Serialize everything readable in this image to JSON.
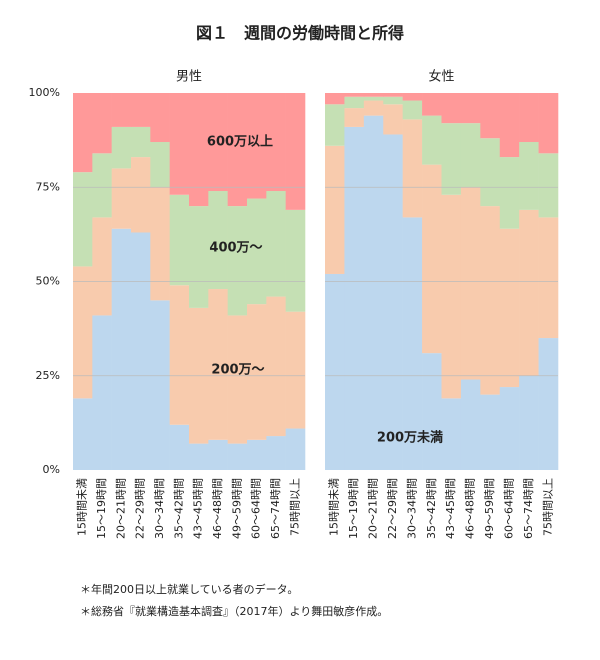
{
  "title": "図１　週間の労働時間と所得",
  "footnotes": [
    "＊年間200日以上就業している者のデータ。",
    "＊総務省『就業構造基本調査』（2017年）より舞田敏彦作成。"
  ],
  "chart_data": [
    {
      "type": "bar",
      "stacked": true,
      "title": "男性",
      "categories": [
        "15時間未満",
        "15～19時間",
        "20～21時間",
        "22～29時間",
        "30～34時間",
        "35～42時間",
        "43～45時間",
        "46～48時間",
        "49～59時間",
        "60～64時間",
        "65～74時間",
        "75時間以上"
      ],
      "series": [
        {
          "name": "200万未満",
          "color": "#bdd7ee",
          "values": [
            19,
            41,
            64,
            63,
            45,
            12,
            7,
            8,
            7,
            8,
            9,
            11
          ]
        },
        {
          "name": "200万～",
          "color": "#f8cbad",
          "values": [
            35,
            26,
            16,
            20,
            30,
            37,
            36,
            40,
            34,
            36,
            37,
            31
          ]
        },
        {
          "name": "400万～",
          "color": "#c5e0b4",
          "values": [
            25,
            17,
            11,
            8,
            12,
            24,
            27,
            26,
            29,
            28,
            28,
            27
          ]
        },
        {
          "name": "600万以上",
          "color": "#ff9999",
          "values": [
            21,
            16,
            9,
            9,
            13,
            27,
            30,
            26,
            30,
            28,
            26,
            31
          ]
        }
      ],
      "ylim": [
        0,
        100
      ],
      "yticks": [
        {
          "value": 0,
          "label": "0%"
        },
        {
          "value": 25,
          "label": "25%"
        },
        {
          "value": 50,
          "label": "50%"
        },
        {
          "value": 75,
          "label": "75%"
        },
        {
          "value": 100,
          "label": "100%"
        }
      ],
      "grid": true
    },
    {
      "type": "bar",
      "stacked": true,
      "title": "女性",
      "categories": [
        "15時間未満",
        "15～19時間",
        "20～21時間",
        "22～29時間",
        "30～34時間",
        "35～42時間",
        "43～45時間",
        "46～48時間",
        "49～59時間",
        "60～64時間",
        "65～74時間",
        "75時間以上"
      ],
      "series": [
        {
          "name": "200万未満",
          "color": "#bdd7ee",
          "values": [
            52,
            91,
            94,
            89,
            67,
            31,
            19,
            24,
            20,
            22,
            25,
            35
          ]
        },
        {
          "name": "200万～",
          "color": "#f8cbad",
          "values": [
            34,
            5,
            4,
            8,
            26,
            50,
            54,
            51,
            50,
            42,
            44,
            32
          ]
        },
        {
          "name": "400万～",
          "color": "#c5e0b4",
          "values": [
            11,
            3,
            1,
            2,
            5,
            13,
            19,
            17,
            18,
            19,
            18,
            17
          ]
        },
        {
          "name": "600万以上",
          "color": "#ff9999",
          "values": [
            3,
            1,
            1,
            1,
            2,
            6,
            8,
            8,
            12,
            17,
            13,
            16
          ]
        }
      ],
      "ylim": [
        0,
        100
      ],
      "grid": true
    }
  ]
}
